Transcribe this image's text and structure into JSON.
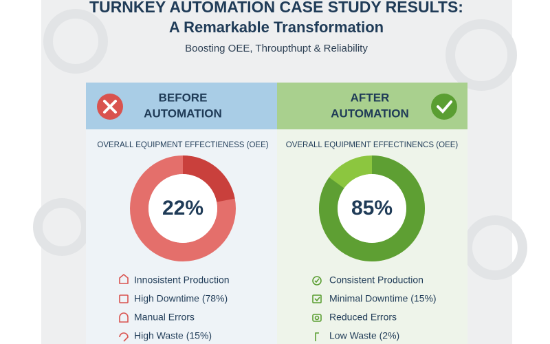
{
  "header": {
    "title": "TURNKEY AUTOMATION CASE STUDY RESULTS:",
    "subtitle": "A Remarkable Transformation",
    "tagline": "Boosting OEE, Throupthupt & Reliability"
  },
  "panels": [
    {
      "heading": [
        "BEFORE",
        "AUTOMATION"
      ],
      "metric": "OVERALL EQUIPMENT EFFECTIENESS (OEE)",
      "oee": {
        "value": 22,
        "label": "22%"
      },
      "items": [
        "Innosistent Production",
        "High Downtime (78%)",
        "Manual Errors",
        "High Waste (15%)"
      ]
    },
    {
      "heading": [
        "AFTER",
        "AUTOMATION"
      ],
      "metric": "OVERALL EQUIPMENT EFFECTINENCS (OEE)",
      "oee": {
        "value": 85,
        "label": "85%"
      },
      "items": [
        "Consistent Production",
        "Minimal Downtime (15%)",
        "Reduced Errors",
        "Low Waste (2%)"
      ]
    }
  ]
}
